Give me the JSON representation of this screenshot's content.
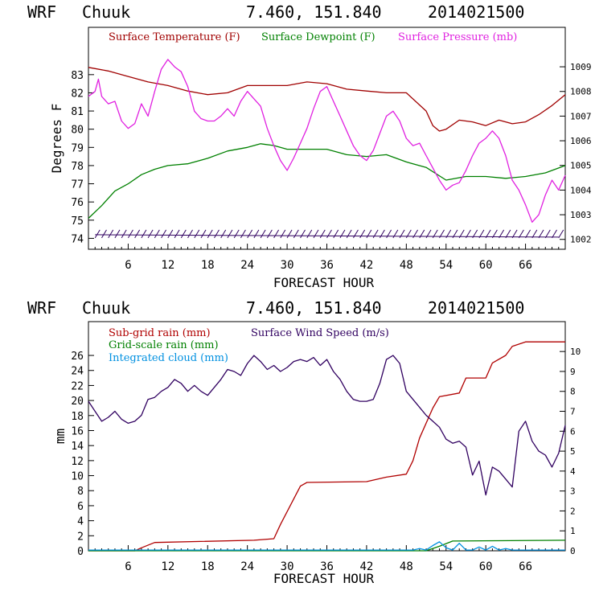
{
  "chart_data": [
    {
      "type": "line",
      "header": {
        "model": "WRF",
        "station": "Chuuk",
        "coords": "7.460, 151.840",
        "init": "2014021500"
      },
      "xlabel": "FORECAST HOUR",
      "ylabel": "Degrees F",
      "xlim": [
        0,
        72
      ],
      "xticks": [
        6,
        12,
        18,
        24,
        30,
        36,
        42,
        48,
        54,
        60,
        66
      ],
      "ylim": [
        73.4,
        85.6
      ],
      "yticks": [
        74,
        75,
        76,
        77,
        78,
        79,
        80,
        81,
        82,
        83
      ],
      "y2lim": [
        1001.6,
        1010.6
      ],
      "y2ticks": [
        1002,
        1003,
        1004,
        1005,
        1006,
        1007,
        1008,
        1009
      ],
      "series": [
        {
          "name": "Surface Temperature (F)",
          "color": "#a00000",
          "axis": "left",
          "x": [
            0,
            3,
            6,
            9,
            12,
            15,
            18,
            21,
            24,
            27,
            30,
            33,
            36,
            39,
            42,
            45,
            48,
            51,
            52,
            53,
            54,
            56,
            58,
            60,
            62,
            64,
            66,
            68,
            70,
            72
          ],
          "y": [
            83.4,
            83.2,
            82.9,
            82.6,
            82.4,
            82.1,
            81.9,
            82.0,
            82.4,
            82.4,
            82.4,
            82.6,
            82.5,
            82.2,
            82.1,
            82.0,
            82.0,
            81.0,
            80.2,
            79.9,
            80.0,
            80.5,
            80.4,
            80.2,
            80.5,
            80.3,
            80.4,
            80.8,
            81.3,
            81.9
          ]
        },
        {
          "name": "Surface Dewpoint (F)",
          "color": "#008000",
          "axis": "left",
          "x": [
            0,
            2,
            4,
            6,
            8,
            10,
            12,
            15,
            18,
            21,
            24,
            26,
            28,
            30,
            33,
            36,
            39,
            42,
            45,
            48,
            51,
            54,
            57,
            60,
            63,
            66,
            69,
            72
          ],
          "y": [
            75.1,
            75.8,
            76.6,
            77.0,
            77.5,
            77.8,
            78.0,
            78.1,
            78.4,
            78.8,
            79.0,
            79.2,
            79.1,
            78.9,
            78.9,
            78.9,
            78.6,
            78.5,
            78.6,
            78.2,
            77.9,
            77.2,
            77.4,
            77.4,
            77.3,
            77.4,
            77.6,
            78.0
          ]
        },
        {
          "name": "Surface Pressure (mb)",
          "color": "#e020e0",
          "axis": "right",
          "x": [
            0,
            1,
            1.5,
            2,
            3,
            4,
            5,
            6,
            7,
            8,
            9,
            10,
            11,
            12,
            13,
            14,
            15,
            16,
            17,
            18,
            19,
            20,
            21,
            22,
            23,
            24,
            25,
            26,
            27,
            28,
            29,
            30,
            31,
            32,
            33,
            34,
            35,
            36,
            37,
            38,
            39,
            40,
            41,
            42,
            43,
            44,
            45,
            46,
            47,
            48,
            49,
            50,
            51,
            52,
            53,
            54,
            55,
            56,
            57,
            58,
            59,
            60,
            61,
            62,
            63,
            64,
            65,
            66,
            67,
            68,
            69,
            70,
            71,
            72
          ],
          "y": [
            1007.8,
            1008.0,
            1008.5,
            1007.8,
            1007.5,
            1007.6,
            1006.8,
            1006.5,
            1006.7,
            1007.5,
            1007.0,
            1008.0,
            1008.9,
            1009.3,
            1009.0,
            1008.8,
            1008.2,
            1007.2,
            1006.9,
            1006.8,
            1006.8,
            1007.0,
            1007.3,
            1007.0,
            1007.6,
            1008.0,
            1007.7,
            1007.4,
            1006.5,
            1005.8,
            1005.2,
            1004.8,
            1005.3,
            1005.9,
            1006.5,
            1007.3,
            1008.0,
            1008.2,
            1007.6,
            1007.0,
            1006.4,
            1005.8,
            1005.4,
            1005.2,
            1005.6,
            1006.3,
            1007.0,
            1007.2,
            1006.8,
            1006.1,
            1005.8,
            1005.9,
            1005.4,
            1004.9,
            1004.4,
            1004.0,
            1004.2,
            1004.3,
            1004.8,
            1005.4,
            1005.9,
            1006.1,
            1006.4,
            1006.1,
            1005.4,
            1004.4,
            1004.0,
            1003.4,
            1002.7,
            1003.0,
            1003.8,
            1004.4,
            1004.0,
            1004.6
          ]
        }
      ]
    },
    {
      "type": "line",
      "header": {
        "model": "WRF",
        "station": "Chuuk",
        "coords": "7.460, 151.840",
        "init": "2014021500"
      },
      "xlabel": "FORECAST HOUR",
      "ylabel": "mm",
      "xlim": [
        0,
        72
      ],
      "xticks": [
        6,
        12,
        18,
        24,
        30,
        36,
        42,
        48,
        54,
        60,
        66
      ],
      "ylim": [
        0,
        30.5
      ],
      "yticks": [
        0,
        2,
        4,
        6,
        8,
        10,
        12,
        14,
        16,
        18,
        20,
        22,
        24,
        26
      ],
      "y2lim": [
        0,
        11.5
      ],
      "y2ticks": [
        0,
        1,
        2,
        3,
        4,
        5,
        6,
        7,
        8,
        9,
        10
      ],
      "series": [
        {
          "name": "Sub-grid rain (mm)",
          "color": "#b00000",
          "axis": "left",
          "x": [
            0,
            7,
            8,
            10,
            25,
            28,
            29,
            32,
            33,
            42,
            45,
            48,
            49,
            50,
            52,
            53,
            56,
            57,
            60,
            61,
            63,
            64,
            66,
            72
          ],
          "y": [
            0,
            0,
            0.4,
            1.1,
            1.4,
            1.6,
            3.5,
            8.6,
            9.1,
            9.2,
            9.8,
            10.2,
            12.0,
            15.0,
            19.0,
            20.5,
            21.0,
            23.0,
            23.0,
            25.0,
            26.0,
            27.2,
            27.8,
            27.8
          ]
        },
        {
          "name": "Grid-scale rain (mm)",
          "color": "#008000",
          "axis": "left",
          "x": [
            0,
            51,
            53,
            55,
            72
          ],
          "y": [
            0,
            0,
            0.6,
            1.3,
            1.4
          ]
        },
        {
          "name": "Integrated cloud (mm)",
          "color": "#0090e0",
          "axis": "left",
          "x": [
            0,
            49,
            50,
            51,
            52,
            53,
            54,
            55,
            56,
            57,
            58,
            59,
            60,
            61,
            62,
            63,
            64,
            72
          ],
          "y": [
            0.1,
            0.1,
            0.3,
            0.1,
            0.7,
            1.2,
            0.4,
            0.1,
            1.0,
            0.1,
            0.1,
            0.5,
            0.1,
            0.6,
            0.1,
            0.3,
            0.1,
            0.1
          ]
        },
        {
          "name": "Surface Wind Speed (m/s)",
          "color": "#300060",
          "axis": "right",
          "x": [
            0,
            1,
            2,
            3,
            4,
            5,
            6,
            7,
            8,
            9,
            10,
            11,
            12,
            13,
            14,
            15,
            16,
            17,
            18,
            19,
            20,
            21,
            22,
            23,
            24,
            25,
            26,
            27,
            28,
            29,
            30,
            31,
            32,
            33,
            34,
            35,
            36,
            37,
            38,
            39,
            40,
            41,
            42,
            43,
            44,
            45,
            46,
            47,
            48,
            49,
            50,
            51,
            52,
            53,
            54,
            55,
            56,
            57,
            58,
            59,
            60,
            61,
            62,
            63,
            64,
            65,
            66,
            67,
            68,
            69,
            70,
            71,
            72
          ],
          "y": [
            7.5,
            7.0,
            6.5,
            6.7,
            7.0,
            6.6,
            6.4,
            6.5,
            6.8,
            7.6,
            7.7,
            8.0,
            8.2,
            8.6,
            8.4,
            8.0,
            8.3,
            8.0,
            7.8,
            8.2,
            8.6,
            9.1,
            9.0,
            8.8,
            9.4,
            9.8,
            9.5,
            9.1,
            9.3,
            9.0,
            9.2,
            9.5,
            9.6,
            9.5,
            9.7,
            9.3,
            9.6,
            9.0,
            8.6,
            8.0,
            7.6,
            7.5,
            7.5,
            7.6,
            8.4,
            9.6,
            9.8,
            9.4,
            8.0,
            7.6,
            7.2,
            6.8,
            6.5,
            6.2,
            5.6,
            5.4,
            5.5,
            5.2,
            3.8,
            4.5,
            2.8,
            4.2,
            4.0,
            3.6,
            3.2,
            6.0,
            6.5,
            5.5,
            5.0,
            4.8,
            4.2,
            4.9,
            6.3
          ]
        }
      ]
    }
  ]
}
